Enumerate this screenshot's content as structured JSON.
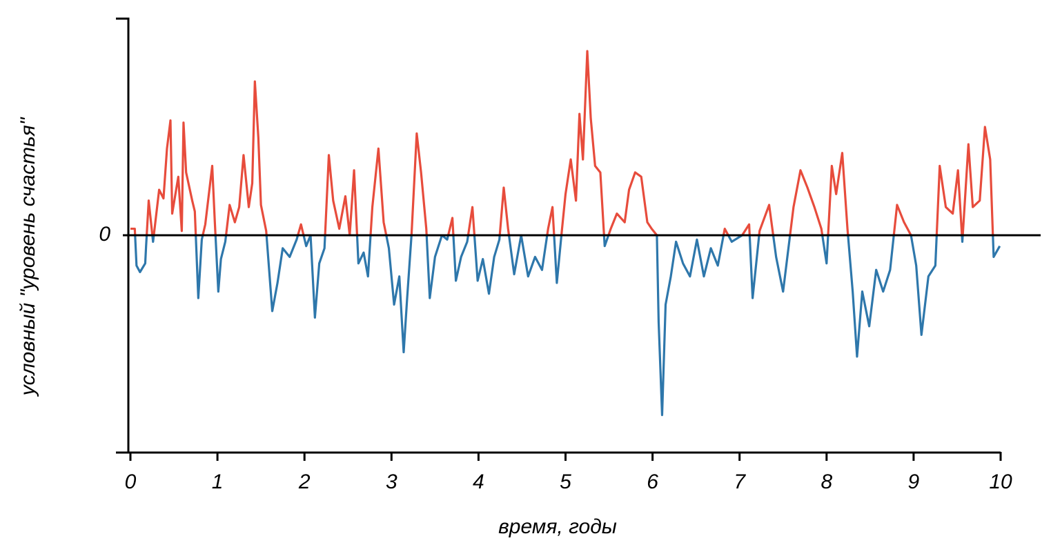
{
  "chart_data": {
    "type": "line",
    "xlabel": "время, годы",
    "ylabel": "условный \"уровень счастья\"",
    "xlim": [
      0,
      10
    ],
    "xticks": [
      0,
      1,
      2,
      3,
      4,
      5,
      6,
      7,
      8,
      9,
      10
    ],
    "ylim": [
      -1,
      1
    ],
    "yticks": [
      0
    ],
    "positive_color": "#e74c3c",
    "negative_color": "#2e77ab",
    "x": [
      0,
      0.05,
      0.07,
      0.11,
      0.17,
      0.18,
      0.21,
      0.26,
      0.33,
      0.38,
      0.42,
      0.46,
      0.48,
      0.55,
      0.59,
      0.61,
      0.64,
      0.71,
      0.74,
      0.78,
      0.82,
      0.86,
      0.94,
      0.97,
      1.01,
      1.04,
      1.09,
      1.14,
      1.2,
      1.25,
      1.3,
      1.36,
      1.4,
      1.43,
      1.47,
      1.5,
      1.56,
      1.63,
      1.69,
      1.75,
      1.83,
      1.91,
      1.96,
      2.02,
      2.07,
      2.12,
      2.17,
      2.23,
      2.28,
      2.33,
      2.4,
      2.47,
      2.52,
      2.57,
      2.62,
      2.68,
      2.73,
      2.78,
      2.85,
      2.91,
      2.97,
      3.03,
      3.09,
      3.14,
      3.18,
      3.23,
      3.29,
      3.34,
      3.4,
      3.44,
      3.5,
      3.58,
      3.64,
      3.7,
      3.74,
      3.8,
      3.87,
      3.93,
      3.99,
      4.05,
      4.12,
      4.18,
      4.24,
      4.29,
      4.34,
      4.41,
      4.49,
      4.57,
      4.65,
      4.73,
      4.8,
      4.85,
      4.9,
      4.96,
      5.0,
      5.06,
      5.12,
      5.16,
      5.2,
      5.25,
      5.29,
      5.34,
      5.4,
      5.45,
      5.52,
      5.59,
      5.68,
      5.73,
      5.8,
      5.87,
      5.94,
      5.99,
      6.05,
      6.07,
      6.11,
      6.15,
      6.21,
      6.27,
      6.35,
      6.43,
      6.51,
      6.59,
      6.67,
      6.75,
      6.83,
      6.91,
      7.03,
      7.11,
      7.15,
      7.23,
      7.34,
      7.42,
      7.5,
      7.54,
      7.62,
      7.7,
      7.78,
      7.86,
      7.94,
      8.0,
      8.06,
      8.11,
      8.18,
      8.24,
      8.3,
      8.35,
      8.41,
      8.49,
      8.57,
      8.65,
      8.73,
      8.81,
      8.89,
      8.97,
      9.03,
      9.09,
      9.17,
      9.25,
      9.3,
      9.37,
      9.45,
      9.51,
      9.56,
      9.63,
      9.68,
      9.76,
      9.82,
      9.88,
      9.92,
      9.99
    ],
    "y": [
      0.03,
      0.03,
      -0.14,
      -0.17,
      -0.13,
      -0.05,
      0.16,
      -0.03,
      0.21,
      0.17,
      0.4,
      0.53,
      0.1,
      0.27,
      0.02,
      0.52,
      0.29,
      0.16,
      0.11,
      -0.29,
      -0.02,
      0.05,
      0.32,
      0.06,
      -0.26,
      -0.11,
      -0.03,
      0.14,
      0.06,
      0.13,
      0.37,
      0.13,
      0.24,
      0.71,
      0.45,
      0.14,
      0.02,
      -0.35,
      -0.22,
      -0.06,
      -0.1,
      -0.02,
      0.05,
      -0.05,
      0,
      -0.38,
      -0.13,
      -0.06,
      0.37,
      0.16,
      0.03,
      0.18,
      0,
      0.3,
      -0.13,
      -0.08,
      -0.19,
      0.13,
      0.4,
      0.06,
      -0.06,
      -0.32,
      -0.19,
      -0.54,
      -0.29,
      0,
      0.47,
      0.29,
      0.03,
      -0.29,
      -0.1,
      0,
      -0.02,
      0.08,
      -0.21,
      -0.1,
      -0.03,
      0.13,
      -0.21,
      -0.11,
      -0.27,
      -0.1,
      -0.02,
      0.22,
      0.03,
      -0.18,
      0,
      -0.19,
      -0.1,
      -0.16,
      0.03,
      0.13,
      -0.22,
      0.03,
      0.19,
      0.35,
      0.16,
      0.56,
      0.35,
      0.85,
      0.54,
      0.32,
      0.29,
      -0.05,
      0.03,
      0.1,
      0.06,
      0.21,
      0.29,
      0.27,
      0.06,
      0.03,
      0,
      -0.4,
      -0.83,
      -0.32,
      -0.19,
      -0.03,
      -0.13,
      -0.19,
      -0.02,
      -0.19,
      -0.06,
      -0.14,
      0.03,
      -0.03,
      0,
      0.05,
      -0.29,
      0.02,
      0.14,
      -0.1,
      -0.26,
      -0.13,
      0.13,
      0.3,
      0.22,
      0.13,
      0.03,
      -0.13,
      0.32,
      0.19,
      0.38,
      0.03,
      -0.26,
      -0.56,
      -0.26,
      -0.42,
      -0.16,
      -0.26,
      -0.16,
      0.14,
      0.06,
      0,
      -0.14,
      -0.46,
      -0.19,
      -0.14,
      0.32,
      0.13,
      0.1,
      0.3,
      -0.03,
      0.42,
      0.13,
      0.16,
      0.5,
      0.35,
      -0.1,
      -0.05
    ]
  }
}
